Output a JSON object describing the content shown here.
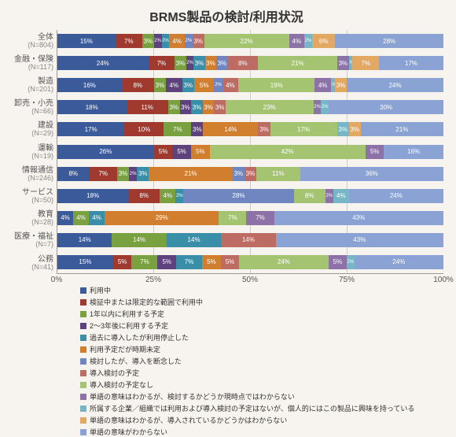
{
  "title": "BRMS製品の検討/利用状況",
  "chart": {
    "type": "bar-stacked-horizontal",
    "xlim": [
      0,
      100
    ],
    "xtick_step": 25,
    "xtick_labels": [
      "0%",
      "25%",
      "50%",
      "75%",
      "100%"
    ],
    "background_color": "#f7f3ef",
    "grid_color": "#cccccc",
    "categories": [
      {
        "name": "全体",
        "n": "(N=804)"
      },
      {
        "name": "金融・保険",
        "n": "(N=117)"
      },
      {
        "name": "製造",
        "n": "(N=201)"
      },
      {
        "name": "卸売・小売",
        "n": "(N=66)"
      },
      {
        "name": "建設",
        "n": "(N=29)"
      },
      {
        "name": "運輸",
        "n": "(N=19)"
      },
      {
        "name": "情報通信",
        "n": "(N=246)"
      },
      {
        "name": "サービス",
        "n": "(N=50)"
      },
      {
        "name": "教育",
        "n": "(N=28)"
      },
      {
        "name": "医療・福祉",
        "n": "(N=7)"
      },
      {
        "name": "公務",
        "n": "(N=41)"
      }
    ],
    "series": [
      {
        "label": "利用中",
        "color": "#3b5a9a"
      },
      {
        "label": "検証中または限定的な範囲で利用中",
        "color": "#a03a2e"
      },
      {
        "label": "1年以内に利用する予定",
        "color": "#7aa13f"
      },
      {
        "label": "2～3年後に利用する予定",
        "color": "#5d427d"
      },
      {
        "label": "過去に導入したが利用停止した",
        "color": "#3a8fa8"
      },
      {
        "label": "利用予定だが時期未定",
        "color": "#d17f2f"
      },
      {
        "label": "検討したが、導入を断念した",
        "color": "#6f86c0"
      },
      {
        "label": "導入検討の予定",
        "color": "#bd6c63"
      },
      {
        "label": "導入検討の予定なし",
        "color": "#a4c472"
      },
      {
        "label": "単語の意味はわかるが、検討するかどうか現時点ではわからない",
        "color": "#8c72a7"
      },
      {
        "label": "所属する企業／組織では利用および導入検討の予定はないが、個人的にはこの製品に興味を持っている",
        "color": "#76b6c7"
      },
      {
        "label": "単語の意味はわかるが、導入されているかどうかはわからない",
        "color": "#e3a962"
      },
      {
        "label": "単語の意味がわからない",
        "color": "#8aa3d4"
      }
    ],
    "data": [
      [
        15,
        7,
        3,
        2,
        2,
        4,
        2,
        3,
        22,
        4,
        2,
        6,
        28
      ],
      [
        24,
        7,
        3,
        2,
        3,
        3,
        3,
        8,
        21,
        3,
        1,
        7,
        17
      ],
      [
        16,
        8,
        3,
        4,
        3,
        5,
        2,
        4,
        19,
        4,
        1,
        3,
        24
      ],
      [
        18,
        11,
        3,
        3,
        3,
        3,
        0,
        3,
        23,
        2,
        2,
        0,
        30
      ],
      [
        17,
        10,
        7,
        3,
        0,
        14,
        0,
        3,
        17,
        0,
        3,
        3,
        21
      ],
      [
        26,
        5,
        0,
        5,
        0,
        5,
        0,
        0,
        42,
        5,
        0,
        0,
        16
      ],
      [
        8,
        7,
        3,
        2,
        3,
        21,
        3,
        3,
        11,
        0,
        0,
        0,
        36
      ],
      [
        18,
        8,
        4,
        0,
        2,
        0,
        28,
        0,
        8,
        2,
        4,
        0,
        24
      ],
      [
        4,
        0,
        4,
        0,
        4,
        29,
        0,
        0,
        7,
        7,
        0,
        0,
        43
      ],
      [
        14,
        0,
        14,
        0,
        14,
        0,
        0,
        14,
        0,
        0,
        0,
        0,
        43
      ],
      [
        15,
        5,
        7,
        5,
        7,
        5,
        0,
        5,
        24,
        5,
        2,
        0,
        24
      ]
    ]
  },
  "legend_marker_prefix": "■"
}
